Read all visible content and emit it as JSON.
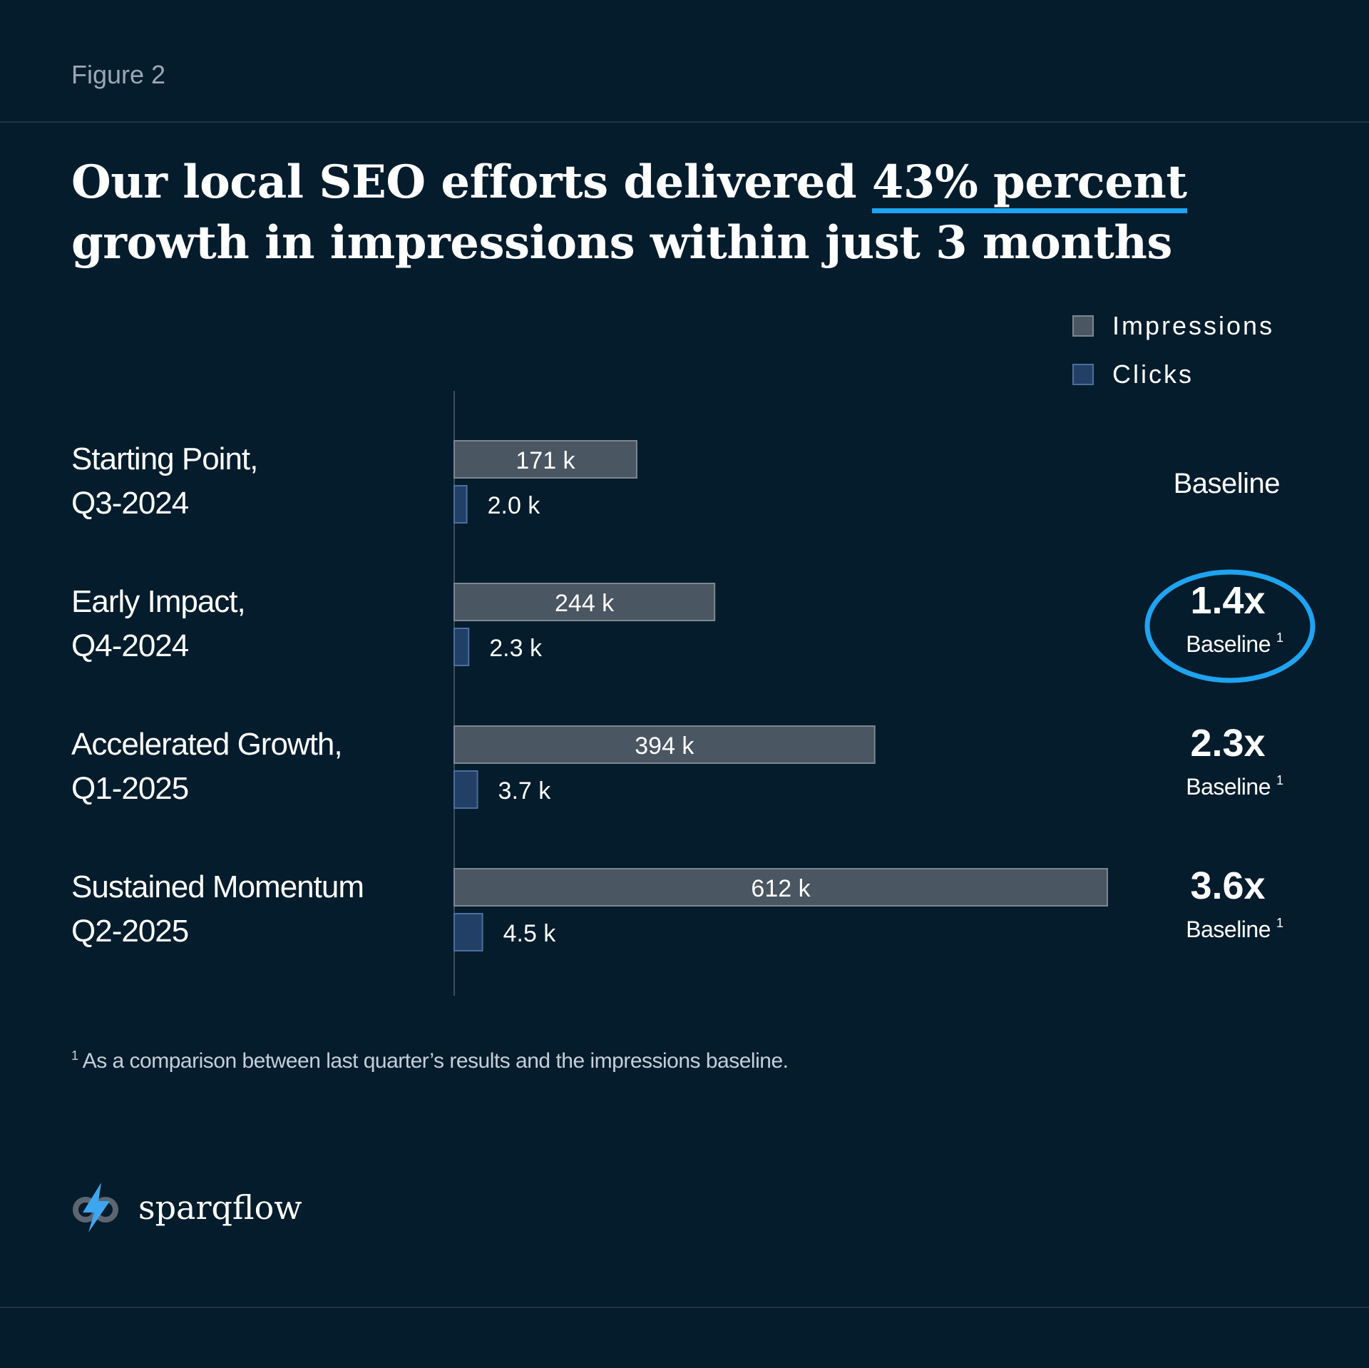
{
  "figure_label": "Figure 2",
  "headline": {
    "before": "Our local SEO efforts delivered ",
    "highlight": "43% percent",
    "after": " growth in impressions within just 3 months"
  },
  "colors": {
    "background": "#051c2c",
    "impressions": "#4a5662",
    "clicks": "#223f66",
    "accent": "#1ea4f0"
  },
  "chart_data": {
    "type": "bar",
    "orientation": "horizontal",
    "title": "",
    "xlabel": "",
    "ylabel": "",
    "xlim": [
      0,
      700
    ],
    "unit_suffix": " k",
    "legend_position": "top-right",
    "categories": [
      [
        "Starting Point,",
        "Q3-2024"
      ],
      [
        "Early Impact,",
        "Q4-2024"
      ],
      [
        "Accelerated Growth,",
        "Q1-2025"
      ],
      [
        "Sustained Momentum",
        "Q2-2025"
      ]
    ],
    "series": [
      {
        "name": "Impressions",
        "values": [
          171,
          244,
          394,
          612
        ],
        "labels": [
          "171 k",
          "244 k",
          "394 k",
          "612 k"
        ]
      },
      {
        "name": "Clicks",
        "values": [
          2.0,
          2.3,
          3.7,
          4.5
        ],
        "labels": [
          "2.0 k",
          "2.3 k",
          "3.7 k",
          "4.5 k"
        ]
      }
    ],
    "annotations": [
      {
        "multiplier": "",
        "label": "Baseline",
        "footnote": "",
        "highlighted": false
      },
      {
        "multiplier": "1.4x",
        "label": "Baseline",
        "footnote": "1",
        "highlighted": true
      },
      {
        "multiplier": "2.3x",
        "label": "Baseline",
        "footnote": "1",
        "highlighted": false
      },
      {
        "multiplier": "3.6x",
        "label": "Baseline",
        "footnote": "1",
        "highlighted": false
      }
    ]
  },
  "footnote": {
    "marker": "1",
    "text": " As a comparison between last quarter’s results and the impressions baseline."
  },
  "brand": {
    "name": "sparqflow",
    "icon": "lightning-link-icon"
  }
}
